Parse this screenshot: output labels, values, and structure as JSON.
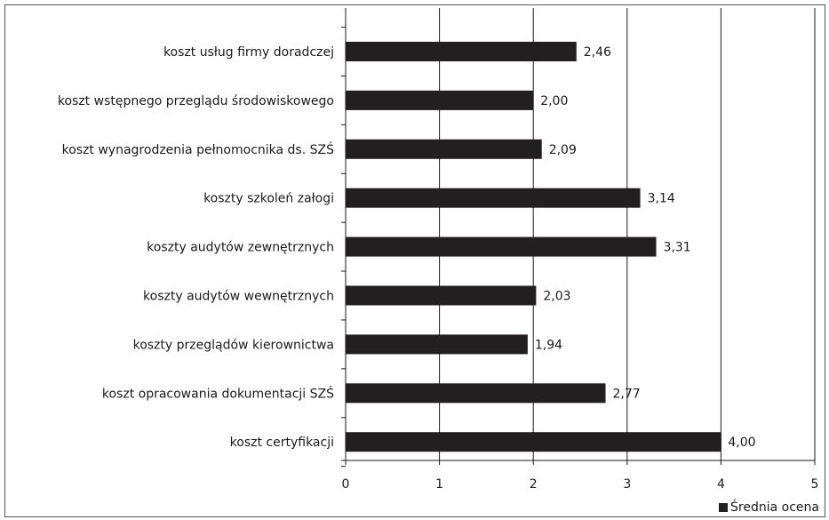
{
  "chart_data": {
    "type": "bar",
    "orientation": "horizontal",
    "categories": [
      "koszt usług firmy doradczej",
      "koszt wstępnego przeglądu środowiskowego",
      "koszt wynagrodzenia pełnomocnika ds. SZŚ",
      "koszty szkoleń załogi",
      "koszty audytów zewnętrznych",
      "koszty audytów wewnętrznych",
      "koszty przeglądów kierownictwa",
      "koszt opracowania dokumentacji SZŚ",
      "koszt certyfikacji"
    ],
    "values": [
      2.46,
      2.0,
      2.09,
      3.14,
      3.31,
      2.03,
      1.94,
      2.77,
      4.0
    ],
    "value_labels": [
      "2,46",
      "2,00",
      "2,09",
      "3,14",
      "3,31",
      "2,03",
      "1,94",
      "2,77",
      "4,00"
    ],
    "xlim": [
      0,
      5
    ],
    "x_ticks": [
      0,
      1,
      2,
      3,
      4,
      5
    ],
    "x_tick_labels": [
      "0",
      "1",
      "2",
      "3",
      "4",
      "5"
    ],
    "grid": "vertical major",
    "legend": {
      "position": "bottom-right",
      "entries": [
        "Średnia ocena"
      ]
    },
    "series": [
      {
        "name": "Średnia ocena",
        "color": "#231f20"
      }
    ],
    "title": "",
    "xlabel": "",
    "ylabel": ""
  }
}
